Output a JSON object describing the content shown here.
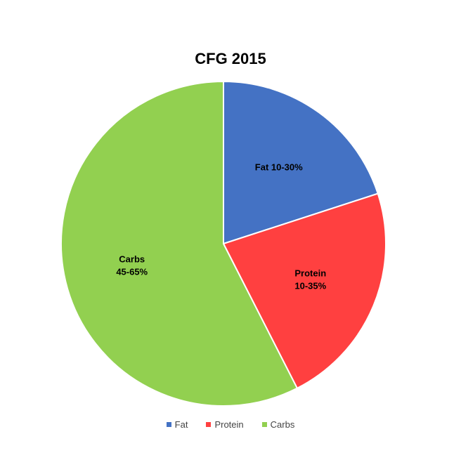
{
  "chart_data": {
    "type": "pie",
    "title": "CFG 2015",
    "legend_position": "bottom",
    "slices": [
      {
        "name": "Fat",
        "label_lines": [
          "Fat 10-30%"
        ],
        "value": 20,
        "color": "#4472C4"
      },
      {
        "name": "Protein",
        "label_lines": [
          "Protein",
          "10-35%"
        ],
        "value": 22.5,
        "color": "#FF4040"
      },
      {
        "name": "Carbs",
        "label_lines": [
          "Carbs",
          "45-65%"
        ],
        "value": 57.5,
        "color": "#92D050"
      }
    ]
  }
}
